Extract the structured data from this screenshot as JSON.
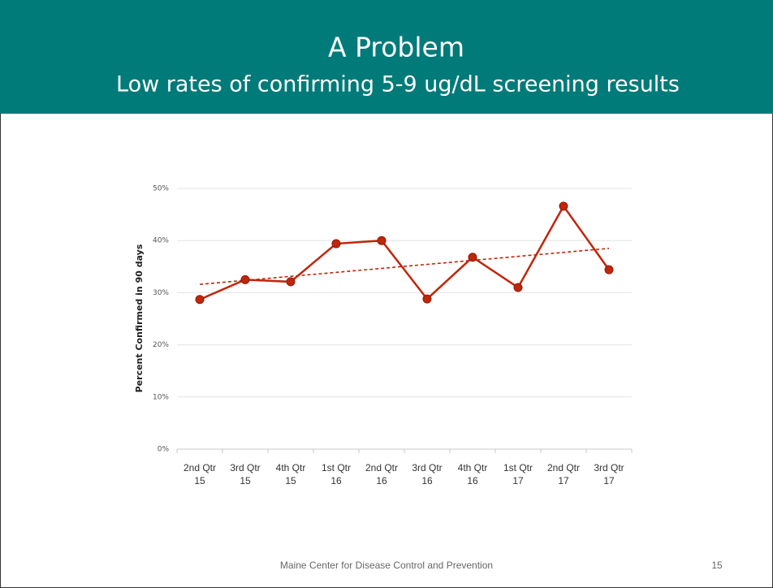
{
  "header": {
    "title": "A Problem",
    "subtitle": "Low rates of confirming 5-9 ug/dL screening results"
  },
  "chart_data": {
    "type": "line",
    "y_label": "Percent Confirmed in 90 days",
    "categories": [
      [
        "2nd Qtr",
        "15"
      ],
      [
        "3rd Qtr",
        "15"
      ],
      [
        "4th Qtr",
        "15"
      ],
      [
        "1st Qtr",
        "16"
      ],
      [
        "2nd Qtr",
        "16"
      ],
      [
        "3rd Qtr",
        "16"
      ],
      [
        "4th Qtr",
        "16"
      ],
      [
        "1st Qtr",
        "17"
      ],
      [
        "2nd Qtr",
        "17"
      ],
      [
        "3rd Qtr",
        "17"
      ]
    ],
    "values": [
      28.7,
      32.5,
      32.1,
      39.4,
      40.0,
      28.8,
      36.8,
      31.0,
      46.6,
      34.4
    ],
    "color": "#c0260c",
    "trendline": {
      "values": [
        31.6,
        38.5
      ],
      "color": "#c0260c"
    },
    "ylim": [
      0,
      50
    ],
    "yticks": [
      {
        "value": 0,
        "label": "0%"
      },
      {
        "value": 10,
        "label": "10%"
      },
      {
        "value": 20,
        "label": "20%"
      },
      {
        "value": 30,
        "label": "30%"
      },
      {
        "value": 40,
        "label": "40%"
      },
      {
        "value": 50,
        "label": "50%"
      }
    ],
    "grid": true
  },
  "footer": {
    "text": "Maine Center for Disease Control and Prevention",
    "page": "15"
  }
}
